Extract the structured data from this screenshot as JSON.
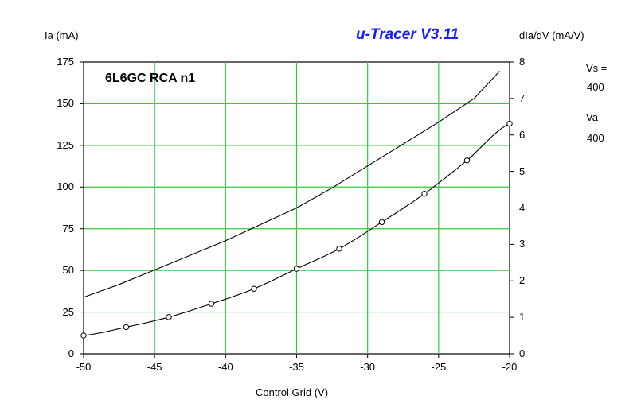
{
  "chart_data": {
    "type": "line",
    "title": "u-Tracer V3.11",
    "annotation": "6L6GC RCA n1",
    "xlabel": "Control Grid (V)",
    "ylabel_left": "Ia (mA)",
    "ylabel_right": "dIa/dV (mA/V)",
    "xlim": [
      -50,
      -20
    ],
    "ylim_left": [
      0,
      175
    ],
    "ylim_right": [
      0,
      8
    ],
    "x_ticks": [
      -50,
      -45,
      -40,
      -35,
      -30,
      -25,
      -20
    ],
    "y_ticks_left": [
      0,
      25,
      50,
      75,
      100,
      125,
      150,
      175
    ],
    "y_ticks_right": [
      0,
      1,
      2,
      3,
      4,
      5,
      6,
      7,
      8
    ],
    "grid": true,
    "grid_color": "#33cc33",
    "series": [
      {
        "name": "Ia",
        "axis": "left",
        "marker": "circle",
        "x": [
          -50,
          -47,
          -44,
          -41,
          -38,
          -35,
          -32,
          -29,
          -26,
          -23,
          -20
        ],
        "y": [
          11,
          16,
          22,
          30,
          39,
          51,
          63,
          79,
          96,
          116,
          138
        ]
      },
      {
        "name": "dIa/dV",
        "axis": "right",
        "marker": "none",
        "x": [
          -50,
          -47.5,
          -45,
          -42.5,
          -40,
          -37.5,
          -35,
          -32.5,
          -30,
          -27.5,
          -25,
          -22.5,
          -20.7
        ],
        "y": [
          1.55,
          1.9,
          2.3,
          2.7,
          3.1,
          3.55,
          4.0,
          4.55,
          5.15,
          5.75,
          6.35,
          7.0,
          7.75
        ]
      }
    ]
  },
  "side_labels": {
    "vs_label": "Vs =",
    "vs_value": "400",
    "va_label": "Va",
    "va_value": "400"
  }
}
